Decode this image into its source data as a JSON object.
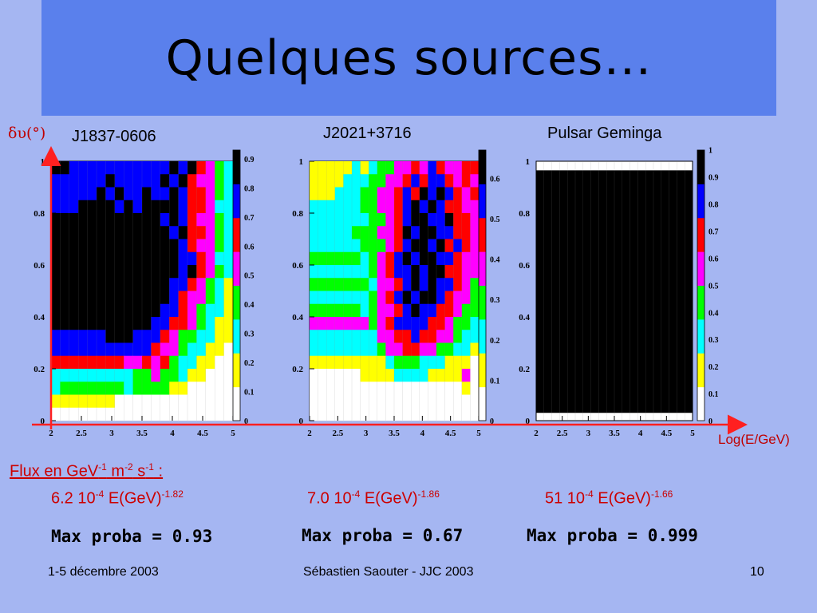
{
  "title": "Quelques sources…",
  "axes": {
    "ylabel": "δυ(°)",
    "xlabel": "Log(E/GeV)"
  },
  "flux_label": "Flux en GeV",
  "flux_label_sup1": "-1",
  "flux_label_m": " m",
  "flux_label_sup2": "-2",
  "flux_label_s": " s",
  "flux_label_sup3": "-1",
  "flux_label_colon": " :",
  "footer": {
    "left": "1-5 décembre 2003",
    "center": "Sébastien Saouter - JJC 2003",
    "page": "10"
  },
  "palette": [
    "#ffffff",
    "#ffff00",
    "#00ffff",
    "#00ff00",
    "#ff00ff",
    "#ff0000",
    "#0000ff",
    "#000000"
  ],
  "panels": [
    {
      "name": "J1837-0606",
      "flux_coef": "6.2 10",
      "flux_exp": "-4",
      "flux_mid": " E(GeV)",
      "flux_idx": "-1.82",
      "max_proba_text": "Max proba = 0.93",
      "zmax": 0.93
    },
    {
      "name": "J2021+3716",
      "flux_coef": "7.0 10",
      "flux_exp": "-4",
      "flux_mid": " E(GeV)",
      "flux_idx": "-1.86",
      "max_proba_text": "Max proba = 0.67",
      "zmax": 0.67
    },
    {
      "name": "Pulsar Geminga",
      "flux_coef": "51 10",
      "flux_exp": "-4",
      "flux_mid": " E(GeV)",
      "flux_idx": "-1.66",
      "max_proba_text": "Max proba = 0.999",
      "zmax": 0.999
    }
  ],
  "chart_data": [
    {
      "type": "heatmap",
      "title": "J1837-0606",
      "xlim": [
        2,
        5
      ],
      "ylim": [
        0,
        1
      ],
      "x_ticks": [
        "2",
        "2.5",
        "3",
        "3.5",
        "4",
        "4.5",
        "5"
      ],
      "y_ticks": [
        "0",
        "0.2",
        "0.4",
        "0.6",
        "0.8",
        "1"
      ],
      "z_ticks": [
        "0",
        "0.1",
        "0.2",
        "0.3",
        "0.4",
        "0.5",
        "0.6",
        "0.7",
        "0.8",
        "0.9"
      ],
      "z_max": 0.93,
      "grid": "20x20 cells, colour = probability level (0-7)",
      "levels": [
        [
          7,
          7,
          6,
          6,
          6,
          6,
          6,
          6,
          6,
          6,
          6,
          6,
          6,
          7,
          6,
          7,
          5,
          4,
          3,
          2
        ],
        [
          6,
          6,
          6,
          6,
          6,
          6,
          7,
          6,
          6,
          6,
          6,
          6,
          7,
          6,
          7,
          5,
          4,
          4,
          3,
          2
        ],
        [
          6,
          6,
          6,
          6,
          6,
          7,
          6,
          7,
          6,
          6,
          7,
          6,
          6,
          7,
          6,
          5,
          5,
          4,
          3,
          2
        ],
        [
          6,
          6,
          6,
          7,
          7,
          7,
          7,
          6,
          7,
          6,
          7,
          7,
          7,
          7,
          6,
          5,
          5,
          4,
          2,
          2
        ],
        [
          7,
          7,
          7,
          7,
          7,
          7,
          7,
          7,
          7,
          7,
          7,
          7,
          6,
          7,
          6,
          5,
          4,
          4,
          3,
          2
        ],
        [
          7,
          7,
          7,
          7,
          7,
          7,
          7,
          7,
          7,
          7,
          7,
          7,
          7,
          6,
          7,
          5,
          5,
          4,
          3,
          2
        ],
        [
          7,
          7,
          7,
          7,
          7,
          7,
          7,
          7,
          7,
          7,
          7,
          7,
          7,
          7,
          6,
          5,
          4,
          4,
          3,
          2
        ],
        [
          7,
          7,
          7,
          7,
          7,
          7,
          7,
          7,
          7,
          7,
          7,
          7,
          7,
          7,
          6,
          6,
          5,
          4,
          2,
          2
        ],
        [
          7,
          7,
          7,
          7,
          7,
          7,
          7,
          7,
          7,
          7,
          7,
          7,
          7,
          7,
          6,
          7,
          5,
          4,
          3,
          2
        ],
        [
          7,
          7,
          7,
          7,
          7,
          7,
          7,
          7,
          7,
          7,
          7,
          7,
          7,
          6,
          6,
          5,
          4,
          3,
          2,
          1
        ],
        [
          7,
          7,
          7,
          7,
          7,
          7,
          7,
          7,
          7,
          7,
          7,
          7,
          7,
          6,
          5,
          4,
          4,
          3,
          2,
          1
        ],
        [
          7,
          7,
          7,
          7,
          7,
          7,
          7,
          7,
          7,
          7,
          7,
          7,
          6,
          6,
          5,
          4,
          3,
          2,
          2,
          1
        ],
        [
          7,
          7,
          7,
          7,
          7,
          7,
          7,
          7,
          7,
          7,
          7,
          6,
          6,
          5,
          5,
          4,
          3,
          2,
          1,
          1
        ],
        [
          6,
          6,
          6,
          6,
          6,
          6,
          7,
          7,
          7,
          6,
          6,
          6,
          5,
          4,
          3,
          3,
          2,
          2,
          1,
          1
        ],
        [
          6,
          6,
          6,
          6,
          6,
          6,
          6,
          6,
          6,
          6,
          6,
          5,
          4,
          4,
          3,
          2,
          2,
          1,
          1,
          0
        ],
        [
          5,
          5,
          5,
          5,
          5,
          5,
          5,
          5,
          4,
          4,
          5,
          4,
          5,
          3,
          2,
          2,
          1,
          1,
          0,
          0
        ],
        [
          2,
          2,
          2,
          2,
          2,
          2,
          2,
          2,
          2,
          3,
          3,
          4,
          3,
          3,
          2,
          1,
          1,
          0,
          0,
          0
        ],
        [
          2,
          3,
          3,
          3,
          3,
          3,
          3,
          3,
          2,
          3,
          3,
          3,
          3,
          1,
          1,
          0,
          0,
          0,
          0,
          0
        ],
        [
          1,
          1,
          1,
          1,
          1,
          1,
          1,
          0,
          0,
          0,
          0,
          0,
          0,
          0,
          0,
          0,
          0,
          0,
          0,
          0
        ],
        [
          0,
          0,
          0,
          0,
          0,
          0,
          0,
          0,
          0,
          0,
          0,
          0,
          0,
          0,
          0,
          0,
          0,
          0,
          0,
          0
        ]
      ]
    },
    {
      "type": "heatmap",
      "title": "J2021+3716",
      "xlim": [
        2,
        5
      ],
      "ylim": [
        0,
        1
      ],
      "x_ticks": [
        "2",
        "2.5",
        "3",
        "3.5",
        "4",
        "4.5",
        "5"
      ],
      "y_ticks": [
        "0",
        "0.2",
        "0.4",
        "0.6",
        "0.8",
        "1"
      ],
      "z_ticks": [
        "0",
        "0.1",
        "0.2",
        "0.3",
        "0.4",
        "0.5",
        "0.6"
      ],
      "z_max": 0.67,
      "grid": "20x20 cells, colour = probability level (0-7)",
      "levels": [
        [
          1,
          1,
          1,
          1,
          1,
          2,
          1,
          2,
          3,
          3,
          4,
          4,
          5,
          4,
          6,
          5,
          4,
          4,
          5,
          5
        ],
        [
          1,
          1,
          1,
          1,
          2,
          2,
          2,
          3,
          3,
          4,
          4,
          5,
          6,
          5,
          6,
          6,
          5,
          4,
          5,
          4
        ],
        [
          1,
          1,
          1,
          2,
          2,
          2,
          3,
          3,
          4,
          4,
          5,
          6,
          5,
          7,
          6,
          7,
          6,
          5,
          4,
          5
        ],
        [
          2,
          2,
          2,
          2,
          2,
          2,
          3,
          3,
          4,
          4,
          5,
          6,
          7,
          6,
          7,
          6,
          5,
          5,
          4,
          4
        ],
        [
          2,
          2,
          2,
          2,
          2,
          2,
          2,
          3,
          3,
          4,
          5,
          6,
          7,
          7,
          6,
          6,
          7,
          5,
          5,
          4
        ],
        [
          2,
          2,
          2,
          2,
          2,
          3,
          3,
          3,
          4,
          4,
          5,
          7,
          6,
          7,
          7,
          6,
          6,
          5,
          5,
          4
        ],
        [
          2,
          2,
          2,
          2,
          2,
          2,
          3,
          3,
          3,
          4,
          5,
          6,
          7,
          7,
          6,
          7,
          5,
          6,
          5,
          4
        ],
        [
          3,
          3,
          3,
          3,
          3,
          3,
          2,
          3,
          4,
          5,
          6,
          7,
          6,
          7,
          7,
          6,
          6,
          5,
          4,
          4
        ],
        [
          2,
          2,
          2,
          2,
          2,
          2,
          2,
          3,
          4,
          5,
          6,
          6,
          7,
          6,
          7,
          7,
          5,
          5,
          4,
          4
        ],
        [
          3,
          3,
          3,
          3,
          3,
          3,
          3,
          2,
          4,
          4,
          5,
          6,
          7,
          6,
          7,
          6,
          6,
          5,
          4,
          3
        ],
        [
          2,
          2,
          2,
          2,
          2,
          2,
          2,
          3,
          4,
          5,
          6,
          7,
          6,
          7,
          7,
          6,
          5,
          4,
          4,
          3
        ],
        [
          3,
          3,
          3,
          3,
          3,
          3,
          2,
          3,
          4,
          4,
          5,
          6,
          7,
          6,
          6,
          5,
          5,
          4,
          3,
          3
        ],
        [
          4,
          4,
          4,
          4,
          4,
          4,
          4,
          3,
          4,
          5,
          6,
          6,
          6,
          6,
          5,
          5,
          4,
          3,
          3,
          2
        ],
        [
          2,
          2,
          2,
          2,
          2,
          2,
          2,
          2,
          4,
          4,
          5,
          5,
          6,
          5,
          5,
          4,
          4,
          3,
          2,
          2
        ],
        [
          2,
          2,
          2,
          2,
          2,
          2,
          2,
          2,
          3,
          4,
          4,
          5,
          5,
          4,
          4,
          3,
          3,
          2,
          2,
          1
        ],
        [
          1,
          1,
          1,
          1,
          1,
          1,
          1,
          1,
          1,
          2,
          3,
          3,
          3,
          2,
          2,
          2,
          1,
          1,
          1,
          0
        ],
        [
          0,
          0,
          0,
          0,
          0,
          0,
          1,
          1,
          1,
          1,
          2,
          2,
          2,
          2,
          1,
          1,
          1,
          1,
          4,
          0
        ],
        [
          0,
          0,
          0,
          0,
          0,
          0,
          0,
          0,
          0,
          0,
          0,
          0,
          0,
          0,
          0,
          0,
          0,
          0,
          1,
          0
        ],
        [
          0,
          0,
          0,
          0,
          0,
          0,
          0,
          0,
          0,
          0,
          0,
          0,
          0,
          0,
          0,
          0,
          0,
          0,
          0,
          0
        ],
        [
          0,
          0,
          0,
          0,
          0,
          0,
          0,
          0,
          0,
          0,
          0,
          0,
          0,
          0,
          0,
          0,
          0,
          0,
          0,
          0
        ]
      ]
    },
    {
      "type": "heatmap",
      "title": "Pulsar Geminga",
      "xlim": [
        2,
        5
      ],
      "ylim": [
        0,
        1
      ],
      "x_ticks": [
        "2",
        "2.5",
        "3",
        "3.5",
        "4",
        "4.5",
        "5"
      ],
      "y_ticks": [
        "0",
        "0.2",
        "0.4",
        "0.6",
        "0.8",
        "1"
      ],
      "z_ticks": [
        "0",
        "0.1",
        "0.2",
        "0.3",
        "0.4",
        "0.5",
        "0.6",
        "0.7",
        "0.8",
        "0.9",
        "1"
      ],
      "z_max": 0.999,
      "grid": "uniform maximum except thin white band near y=1 and y=0",
      "levels": "all-max"
    }
  ]
}
